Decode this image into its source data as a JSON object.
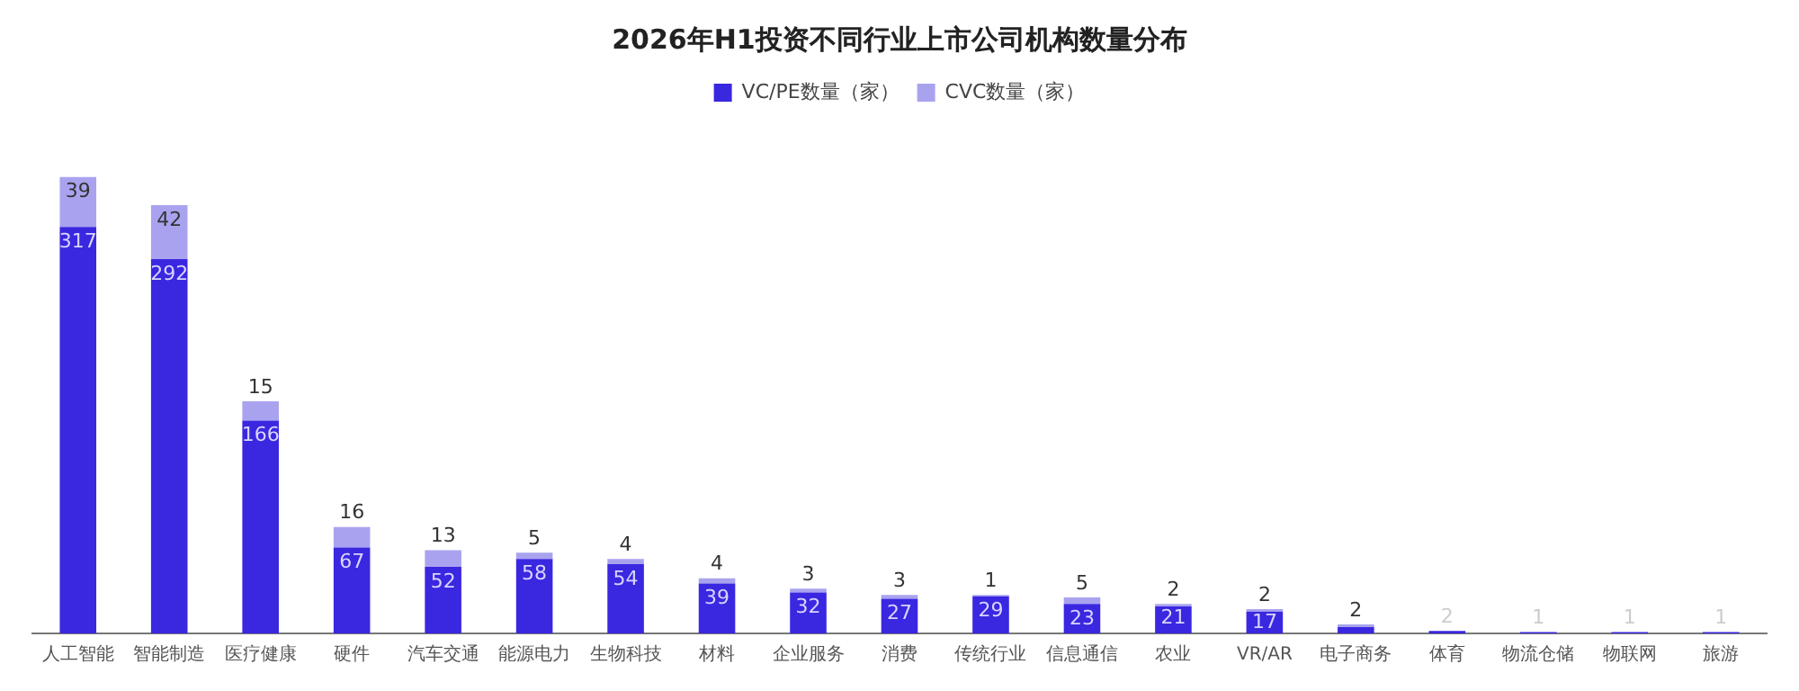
{
  "chart_data": {
    "type": "bar",
    "title": "2026年H1投资不同行业上市公司机构数量分布",
    "stacked": true,
    "legend": "top",
    "grid": false,
    "categories": [
      "人工智能",
      "智能制造",
      "医疗健康",
      "硬件",
      "汽车交通",
      "能源电力",
      "生物科技",
      "材料",
      "企业服务",
      "消费",
      "传统行业",
      "信息通信",
      "农业",
      "VR/AR",
      "电子商务",
      "体育",
      "物流仓储",
      "物联网",
      "旅游"
    ],
    "series": [
      {
        "name": "VC/PE数量（家）",
        "color": "#3a27e0",
        "values": [
          317,
          292,
          166,
          67,
          52,
          58,
          54,
          39,
          32,
          27,
          29,
          23,
          21,
          17,
          5,
          2,
          1,
          1,
          1
        ],
        "value_labels": [
          "317",
          "292",
          "166",
          "67",
          "52",
          "58",
          "54",
          "39",
          "32",
          "27",
          "29",
          "23",
          "21",
          "17",
          null,
          "2",
          "1",
          "1",
          "1"
        ]
      },
      {
        "name": "CVC数量（家）",
        "color": "#a9a3ef",
        "values": [
          39,
          42,
          15,
          16,
          13,
          5,
          4,
          4,
          3,
          3,
          1,
          5,
          2,
          2,
          2,
          0,
          0,
          0,
          0
        ],
        "value_labels": [
          "39",
          "42",
          "15",
          "16",
          "13",
          "5",
          "4",
          "4",
          "3",
          "3",
          "1",
          "5",
          "2",
          "2",
          "2",
          null,
          null,
          null,
          null
        ]
      }
    ]
  }
}
